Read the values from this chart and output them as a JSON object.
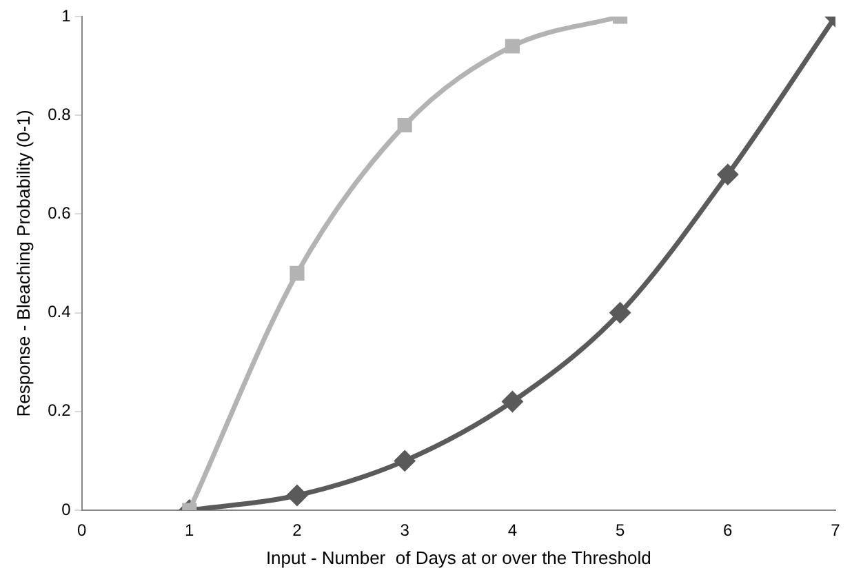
{
  "chart_data": {
    "type": "line",
    "xlabel": "Input - Number  of Days at or over the Threshold",
    "ylabel": "Response - Bleaching Probability (0-1)",
    "xlim": [
      0,
      7
    ],
    "xticks": [
      0,
      1,
      2,
      3,
      4,
      5,
      6,
      7
    ],
    "ylim": [
      0,
      1
    ],
    "yticks": [
      0,
      0.2,
      0.4,
      0.6,
      0.8,
      1
    ],
    "grid": false,
    "legend": false,
    "line_style": "solid",
    "series": [
      {
        "color": "#b3b3b3",
        "marker": "square",
        "x": [
          1,
          2,
          3,
          4,
          5
        ],
        "values": [
          0,
          0.48,
          0.78,
          0.94,
          1.0
        ]
      },
      {
        "color": "#5a5a5a",
        "marker": "diamond",
        "x": [
          1,
          2,
          3,
          4,
          5,
          6,
          7
        ],
        "values": [
          0,
          0.03,
          0.1,
          0.22,
          0.4,
          0.68,
          1.0
        ]
      }
    ]
  }
}
